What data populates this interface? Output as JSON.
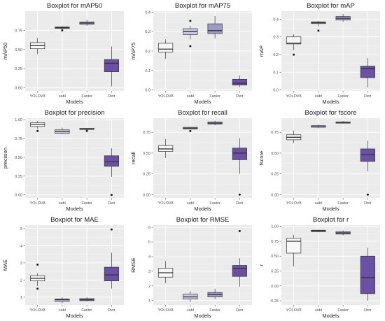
{
  "colors": {
    "panel_bg": "#ebebeb",
    "grid_major": "#ffffff",
    "YOLOV8": "#f7f7f7",
    "sabl": "#cbc9e2",
    "Faster": "#9e9ac8",
    "Detr": "#6a51a3",
    "outline": "#333333"
  },
  "chart_data": [
    {
      "type": "boxplot",
      "title": "Boxplot for mAP50",
      "xlabel": "Models",
      "ylabel": "mAP50",
      "categories": [
        "YOLOV8",
        "sabl",
        "Faster",
        "Detr"
      ],
      "ylim": [
        -0.04,
        1.0
      ],
      "yticks": [
        0.0,
        0.25,
        0.5,
        0.75
      ],
      "ytick_labels": [
        "0.00",
        "0.25",
        "0.50",
        "0.75"
      ],
      "boxes": [
        {
          "min": 0.44,
          "q1": 0.51,
          "median": 0.55,
          "q3": 0.59,
          "max": 0.65,
          "outliers": []
        },
        {
          "min": 0.76,
          "q1": 0.775,
          "median": 0.785,
          "q3": 0.795,
          "max": 0.805,
          "outliers": [
            0.75
          ]
        },
        {
          "min": 0.81,
          "q1": 0.83,
          "median": 0.845,
          "q3": 0.86,
          "max": 0.885,
          "outliers": []
        },
        {
          "min": 0.02,
          "q1": 0.21,
          "median": 0.32,
          "q3": 0.37,
          "max": 0.54,
          "outliers": []
        }
      ]
    },
    {
      "type": "boxplot",
      "title": "Boxplot for mAP75",
      "xlabel": "Models",
      "ylabel": "mAP75",
      "categories": [
        "YOLOV8",
        "sabl",
        "Faster",
        "Detr"
      ],
      "ylim": [
        -0.005,
        0.405
      ],
      "yticks": [
        0.0,
        0.1,
        0.2,
        0.3,
        0.4
      ],
      "ytick_labels": [
        "0.0",
        "0.1",
        "0.2",
        "0.3",
        "0.4"
      ],
      "boxes": [
        {
          "min": 0.16,
          "q1": 0.195,
          "median": 0.21,
          "q3": 0.24,
          "max": 0.26,
          "outliers": []
        },
        {
          "min": 0.26,
          "q1": 0.285,
          "median": 0.3,
          "q3": 0.315,
          "max": 0.33,
          "outliers": [
            0.225,
            0.355
          ]
        },
        {
          "min": 0.265,
          "q1": 0.29,
          "median": 0.305,
          "q3": 0.34,
          "max": 0.38,
          "outliers": []
        },
        {
          "min": 0.015,
          "q1": 0.025,
          "median": 0.035,
          "q3": 0.055,
          "max": 0.075,
          "outliers": []
        }
      ]
    },
    {
      "type": "boxplot",
      "title": "Boxplot for mAP",
      "xlabel": "Models",
      "ylabel": "mAP",
      "categories": [
        "YOLOV8",
        "sabl",
        "Faster",
        "Detr"
      ],
      "ylim": [
        -0.005,
        0.445
      ],
      "yticks": [
        0.0,
        0.1,
        0.2,
        0.3,
        0.4
      ],
      "ytick_labels": [
        "0.0",
        "0.1",
        "0.2",
        "0.3",
        "0.4"
      ],
      "boxes": [
        {
          "min": 0.225,
          "q1": 0.26,
          "median": 0.265,
          "q3": 0.3,
          "max": 0.315,
          "outliers": [
            0.2
          ]
        },
        {
          "min": 0.36,
          "q1": 0.375,
          "median": 0.38,
          "q3": 0.385,
          "max": 0.39,
          "outliers": [
            0.335
          ]
        },
        {
          "min": 0.385,
          "q1": 0.395,
          "median": 0.405,
          "q3": 0.415,
          "max": 0.43,
          "outliers": []
        },
        {
          "min": 0.015,
          "q1": 0.07,
          "median": 0.12,
          "q3": 0.135,
          "max": 0.18,
          "outliers": []
        }
      ]
    },
    {
      "type": "boxplot",
      "title": "Boxplot for precision",
      "xlabel": "Models",
      "ylabel": "precision",
      "categories": [
        "YOLOV8",
        "sabl",
        "Faster",
        "Detr"
      ],
      "ylim": [
        -0.04,
        1.02
      ],
      "yticks": [
        0.0,
        0.25,
        0.5,
        0.75,
        1.0
      ],
      "ytick_labels": [
        "0.00",
        "0.25",
        "0.50",
        "0.75",
        "1.00"
      ],
      "boxes": [
        {
          "min": 0.88,
          "q1": 0.91,
          "median": 0.94,
          "q3": 0.96,
          "max": 0.98,
          "outliers": [
            0.85
          ]
        },
        {
          "min": 0.81,
          "q1": 0.82,
          "median": 0.845,
          "q3": 0.865,
          "max": 0.895,
          "outliers": []
        },
        {
          "min": 0.865,
          "q1": 0.87,
          "median": 0.875,
          "q3": 0.885,
          "max": 0.89,
          "outliers": [
            0.85
          ]
        },
        {
          "min": 0.24,
          "q1": 0.38,
          "median": 0.44,
          "q3": 0.52,
          "max": 0.62,
          "outliers": [
            0.0
          ]
        }
      ]
    },
    {
      "type": "boxplot",
      "title": "Boxplot for recall",
      "xlabel": "Models",
      "ylabel": "recall",
      "categories": [
        "YOLOV8",
        "sabl",
        "Faster",
        "Detr"
      ],
      "ylim": [
        -0.04,
        0.92
      ],
      "yticks": [
        0.0,
        0.25,
        0.5,
        0.75
      ],
      "ytick_labels": [
        "0.00",
        "0.25",
        "0.50",
        "0.75"
      ],
      "boxes": [
        {
          "min": 0.44,
          "q1": 0.52,
          "median": 0.55,
          "q3": 0.59,
          "max": 0.67,
          "outliers": []
        },
        {
          "min": 0.785,
          "q1": 0.79,
          "median": 0.8,
          "q3": 0.81,
          "max": 0.815,
          "outliers": [
            0.765
          ]
        },
        {
          "min": 0.835,
          "q1": 0.85,
          "median": 0.86,
          "q3": 0.875,
          "max": 0.89,
          "outliers": []
        },
        {
          "min": 0.25,
          "q1": 0.42,
          "median": 0.5,
          "q3": 0.56,
          "max": 0.68,
          "outliers": [
            0.0
          ]
        }
      ]
    },
    {
      "type": "boxplot",
      "title": "Boxplot for fscore",
      "xlabel": "Models",
      "ylabel": "fscore",
      "categories": [
        "YOLOV8",
        "sabl",
        "Faster",
        "Detr"
      ],
      "ylim": [
        -0.04,
        0.92
      ],
      "yticks": [
        0.0,
        0.25,
        0.5,
        0.75
      ],
      "ytick_labels": [
        "0.00",
        "0.25",
        "0.50",
        "0.75"
      ],
      "boxes": [
        {
          "min": 0.62,
          "q1": 0.66,
          "median": 0.69,
          "q3": 0.72,
          "max": 0.77,
          "outliers": []
        },
        {
          "min": 0.8,
          "q1": 0.81,
          "median": 0.825,
          "q3": 0.83,
          "max": 0.84,
          "outliers": []
        },
        {
          "min": 0.855,
          "q1": 0.86,
          "median": 0.87,
          "q3": 0.875,
          "max": 0.885,
          "outliers": []
        },
        {
          "min": 0.28,
          "q1": 0.4,
          "median": 0.48,
          "q3": 0.55,
          "max": 0.65,
          "outliers": [
            0.0
          ]
        }
      ]
    },
    {
      "type": "boxplot",
      "title": "Boxplot for MAE",
      "xlabel": "Models",
      "ylabel": "MAE",
      "categories": [
        "YOLOV8",
        "sabl",
        "Faster",
        "Detr"
      ],
      "ylim": [
        0.55,
        5.2
      ],
      "yticks": [
        1,
        2,
        3,
        4,
        5
      ],
      "ytick_labels": [
        "1",
        "2",
        "3",
        "4",
        "5"
      ],
      "boxes": [
        {
          "min": 1.65,
          "q1": 1.95,
          "median": 2.1,
          "q3": 2.25,
          "max": 2.4,
          "outliers": [
            2.9,
            1.5
          ]
        },
        {
          "min": 0.65,
          "q1": 0.75,
          "median": 0.85,
          "q3": 0.9,
          "max": 1.0,
          "outliers": []
        },
        {
          "min": 0.75,
          "q1": 0.8,
          "median": 0.85,
          "q3": 0.92,
          "max": 1.0,
          "outliers": []
        },
        {
          "min": 1.5,
          "q1": 1.95,
          "median": 2.3,
          "q3": 2.75,
          "max": 3.6,
          "outliers": [
            4.95
          ]
        }
      ]
    },
    {
      "type": "boxplot",
      "title": "Boxplot for RMSE",
      "xlabel": "Models",
      "ylabel": "RMSE",
      "categories": [
        "YOLOV8",
        "sabl",
        "Faster",
        "Detr"
      ],
      "ylim": [
        0.7,
        6.15
      ],
      "yticks": [
        1,
        2,
        3,
        4,
        5,
        6
      ],
      "ytick_labels": [
        "1",
        "2",
        "3",
        "4",
        "5",
        "6"
      ],
      "boxes": [
        {
          "min": 2.2,
          "q1": 2.6,
          "median": 2.9,
          "q3": 3.2,
          "max": 3.7,
          "outliers": []
        },
        {
          "min": 0.9,
          "q1": 1.1,
          "median": 1.25,
          "q3": 1.45,
          "max": 1.65,
          "outliers": []
        },
        {
          "min": 1.1,
          "q1": 1.25,
          "median": 1.4,
          "q3": 1.55,
          "max": 1.8,
          "outliers": []
        },
        {
          "min": 1.95,
          "q1": 2.65,
          "median": 3.2,
          "q3": 3.4,
          "max": 3.9,
          "outliers": [
            5.75
          ]
        }
      ]
    },
    {
      "type": "boxplot",
      "title": "Boxplot for r",
      "xlabel": "Models",
      "ylabel": "r",
      "categories": [
        "YOLOV8",
        "sabl",
        "Faster",
        "Detr"
      ],
      "ylim": [
        -0.32,
        1.02
      ],
      "yticks": [
        -0.25,
        0.0,
        0.25,
        0.5,
        0.75,
        1.0
      ],
      "ytick_labels": [
        "-0.25",
        "0.00",
        "0.25",
        "0.50",
        "0.75",
        "1.00"
      ],
      "boxes": [
        {
          "min": 0.33,
          "q1": 0.55,
          "median": 0.75,
          "q3": 0.8,
          "max": 0.86,
          "outliers": []
        },
        {
          "min": 0.9,
          "q1": 0.91,
          "median": 0.925,
          "q3": 0.935,
          "max": 0.945,
          "outliers": []
        },
        {
          "min": 0.85,
          "q1": 0.87,
          "median": 0.89,
          "q3": 0.91,
          "max": 0.93,
          "outliers": []
        },
        {
          "min": -0.25,
          "q1": -0.13,
          "median": 0.14,
          "q3": 0.5,
          "max": 0.64,
          "outliers": []
        }
      ]
    }
  ]
}
